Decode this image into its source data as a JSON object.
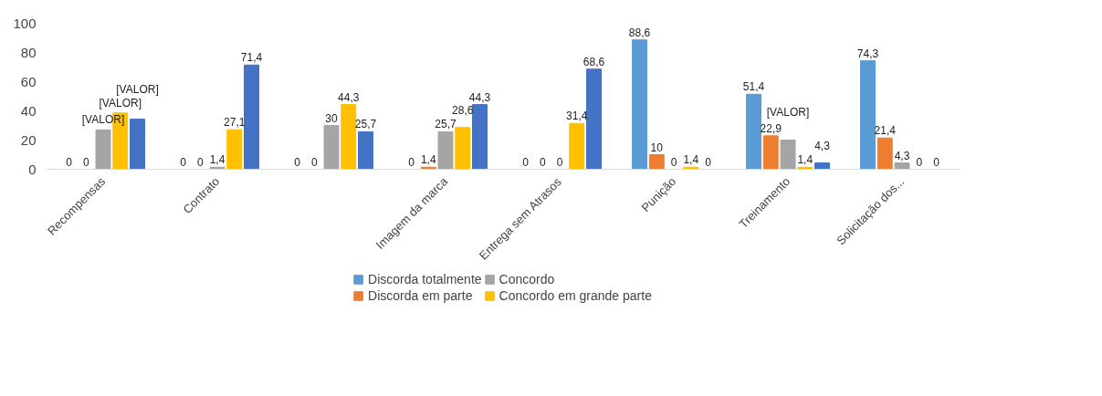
{
  "chart_data": {
    "type": "bar",
    "categories": [
      "Recompensas",
      "Contrato",
      null,
      "Imagem da marca",
      "Entrega sem Atrasos",
      "Punição",
      "Treinamento",
      "Solicitação dos..."
    ],
    "series": [
      {
        "name": "Discorda totalmente",
        "color": "#5b9bd5",
        "values": [
          0,
          0,
          0,
          0,
          0,
          88.6,
          51.4,
          74.3
        ],
        "value_labels": [
          "0",
          "0",
          "0",
          "0",
          "0",
          "88,6",
          "51,4",
          "74,3"
        ]
      },
      {
        "name": "Discorda em parte",
        "color": "#ed7d31",
        "values": [
          0,
          0,
          0,
          1.4,
          0,
          10,
          22.9,
          21.4
        ],
        "value_labels": [
          "0",
          "0",
          "0",
          "1,4",
          "0",
          "10",
          "22,9",
          "21,4"
        ]
      },
      {
        "name": "Concordo",
        "color": "#a5a5a5",
        "values": [
          27,
          1.4,
          30,
          25.7,
          0,
          0,
          20,
          4.3
        ],
        "value_labels": [
          "[VALOR]",
          "1,4",
          "30",
          "25,7",
          "0",
          "0",
          "[VALOR]",
          "4,3"
        ]
      },
      {
        "name": "Concordo em grande parte",
        "color": "#ffc000",
        "values": [
          38.6,
          27.1,
          44.3,
          28.6,
          31.4,
          1.4,
          1.4,
          0
        ],
        "value_labels": [
          "[VALOR]",
          "27,1",
          "44,3",
          "28,6",
          "31,4",
          "1,4",
          "1,4",
          "0"
        ]
      },
      {
        "color": "#4472c4",
        "values": [
          34.3,
          71.4,
          25.7,
          44.3,
          68.6,
          0,
          4.3,
          0
        ],
        "value_labels": [
          "[VALOR]",
          "71,4",
          "25,7",
          "44,3",
          "68,6",
          "0",
          "4,3",
          "0"
        ]
      }
    ],
    "ylim": [
      0,
      100
    ],
    "yticks": [
      0,
      20,
      40,
      60,
      80,
      100
    ],
    "grid": false,
    "legend": "bottom"
  }
}
